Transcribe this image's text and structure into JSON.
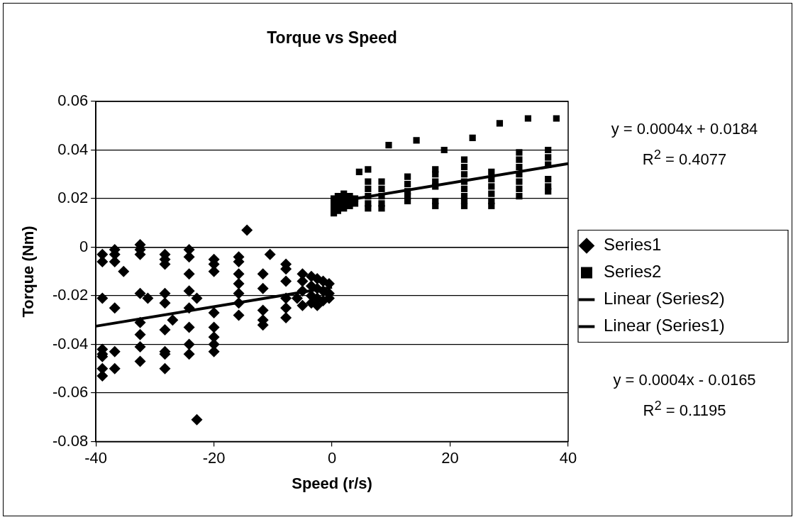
{
  "chart_data": {
    "type": "scatter",
    "title": "Torque vs Speed",
    "xlabel": "Speed (r/s)",
    "ylabel": "Torque (Nm)",
    "xlim": [
      -40,
      40
    ],
    "xticks": [
      -40,
      -20,
      0,
      20,
      40
    ],
    "ylim": [
      -0.08,
      0.06
    ],
    "yticks": [
      -0.08,
      -0.06,
      -0.04,
      -0.02,
      0,
      0.02,
      0.04,
      0.06
    ],
    "grid": "y",
    "legend": "right",
    "annotations": [
      "y = 0.0004x + 0.0184",
      "R$^{2}$ = 0.4077",
      "y = 0.0004x - 0.0165",
      "R$^{2}$ = 0.1195"
    ],
    "series": [
      {
        "name": "Series1",
        "marker": "diamond",
        "color": "#000000",
        "x": [
          -38.9,
          -38.9,
          -38.9,
          -38.9,
          -38.9,
          -38.9,
          -38.9,
          -38.9,
          -36.8,
          -36.8,
          -36.8,
          -36.8,
          -36.8,
          -36.8,
          -35.3,
          -32.5,
          -32.5,
          -32.5,
          -32.5,
          -32.5,
          -32.5,
          -32.5,
          -32.5,
          -31.2,
          -28.3,
          -28.3,
          -28.3,
          -28.3,
          -28.3,
          -28.3,
          -28.3,
          -28.3,
          -28.3,
          -27,
          -24.2,
          -24.2,
          -24.2,
          -24.2,
          -24.2,
          -24.2,
          -24.2,
          -24.2,
          -22.9,
          -22.9,
          -20,
          -20,
          -20,
          -20,
          -20,
          -20,
          -20,
          -20,
          -15.8,
          -15.8,
          -15.8,
          -15.8,
          -15.8,
          -15.8,
          -15.8,
          -14.4,
          -11.7,
          -11.7,
          -11.7,
          -11.7,
          -11.7,
          -10.5,
          -7.8,
          -7.8,
          -7.8,
          -7.8,
          -7.8,
          -7.8,
          -5.9,
          -5,
          -5,
          -5,
          -5,
          -3.5,
          -3.5,
          -3.5,
          -3.5,
          -2.5,
          -2.5,
          -2.5,
          -2.5,
          -1.5,
          -1.5,
          -1.5,
          -0.5,
          -0.5,
          -0.5
        ],
        "values": [
          -0.003,
          -0.006,
          -0.021,
          -0.042,
          -0.044,
          -0.045,
          -0.05,
          -0.053,
          -0.001,
          -0.003,
          -0.006,
          -0.025,
          -0.043,
          -0.05,
          -0.01,
          0.001,
          -0.001,
          -0.003,
          -0.019,
          -0.031,
          -0.036,
          -0.041,
          -0.047,
          -0.021,
          -0.003,
          -0.005,
          -0.007,
          -0.019,
          -0.023,
          -0.034,
          -0.043,
          -0.044,
          -0.05,
          -0.03,
          -0.001,
          -0.004,
          -0.011,
          -0.018,
          -0.025,
          -0.033,
          -0.04,
          -0.044,
          -0.021,
          -0.071,
          -0.005,
          -0.007,
          -0.01,
          -0.027,
          -0.033,
          -0.037,
          -0.04,
          -0.043,
          -0.004,
          -0.006,
          -0.011,
          -0.015,
          -0.019,
          -0.023,
          -0.028,
          0.007,
          -0.011,
          -0.017,
          -0.026,
          -0.03,
          -0.032,
          -0.003,
          -0.007,
          -0.009,
          -0.014,
          -0.021,
          -0.025,
          -0.029,
          -0.021,
          -0.011,
          -0.014,
          -0.018,
          -0.024,
          -0.012,
          -0.016,
          -0.02,
          -0.023,
          -0.013,
          -0.017,
          -0.021,
          -0.024,
          -0.014,
          -0.018,
          -0.022,
          -0.015,
          -0.019,
          -0.021
        ]
      },
      {
        "name": "Series2",
        "marker": "square",
        "color": "#000000",
        "x": [
          0.3,
          0.3,
          0.3,
          0.3,
          1,
          1,
          1,
          1,
          2,
          2,
          2,
          2,
          3,
          3,
          3,
          3.9,
          3.9,
          4.6,
          6.1,
          6.1,
          6.1,
          6.1,
          6.1,
          6.1,
          8.4,
          8.4,
          8.4,
          8.4,
          8.4,
          9.6,
          12.8,
          12.8,
          12.8,
          12.8,
          12.8,
          14.3,
          17.5,
          17.5,
          17.5,
          17.5,
          17.5,
          17.5,
          19,
          22.4,
          22.4,
          22.4,
          22.4,
          22.4,
          22.4,
          22.4,
          22.4,
          23.8,
          27,
          27,
          27,
          27,
          27,
          27,
          28.4,
          31.7,
          31.7,
          31.7,
          31.7,
          31.7,
          31.7,
          31.7,
          33.2,
          36.6,
          36.6,
          36.6,
          36.6,
          36.6,
          36.6,
          38
        ],
        "values": [
          0.014,
          0.016,
          0.018,
          0.02,
          0.015,
          0.017,
          0.019,
          0.021,
          0.016,
          0.018,
          0.02,
          0.022,
          0.017,
          0.019,
          0.021,
          0.018,
          0.02,
          0.031,
          0.032,
          0.027,
          0.024,
          0.021,
          0.018,
          0.016,
          0.027,
          0.024,
          0.021,
          0.018,
          0.016,
          0.042,
          0.029,
          0.026,
          0.023,
          0.021,
          0.019,
          0.044,
          0.032,
          0.03,
          0.027,
          0.025,
          0.019,
          0.017,
          0.04,
          0.036,
          0.033,
          0.03,
          0.027,
          0.024,
          0.021,
          0.019,
          0.017,
          0.045,
          0.031,
          0.028,
          0.025,
          0.022,
          0.019,
          0.017,
          0.051,
          0.039,
          0.036,
          0.033,
          0.03,
          0.027,
          0.024,
          0.021,
          0.053,
          0.04,
          0.037,
          0.034,
          0.028,
          0.025,
          0.023,
          0.053
        ]
      },
      {
        "name": "Linear (Series2)",
        "type": "line",
        "line_style": "solid",
        "color": "#000000",
        "x": [
          0,
          40
        ],
        "values": [
          0.0184,
          0.0344
        ]
      },
      {
        "name": "Linear (Series1)",
        "type": "line",
        "line_style": "solid",
        "color": "#000000",
        "x": [
          -40,
          0
        ],
        "values": [
          -0.0325,
          -0.0165
        ]
      }
    ]
  }
}
